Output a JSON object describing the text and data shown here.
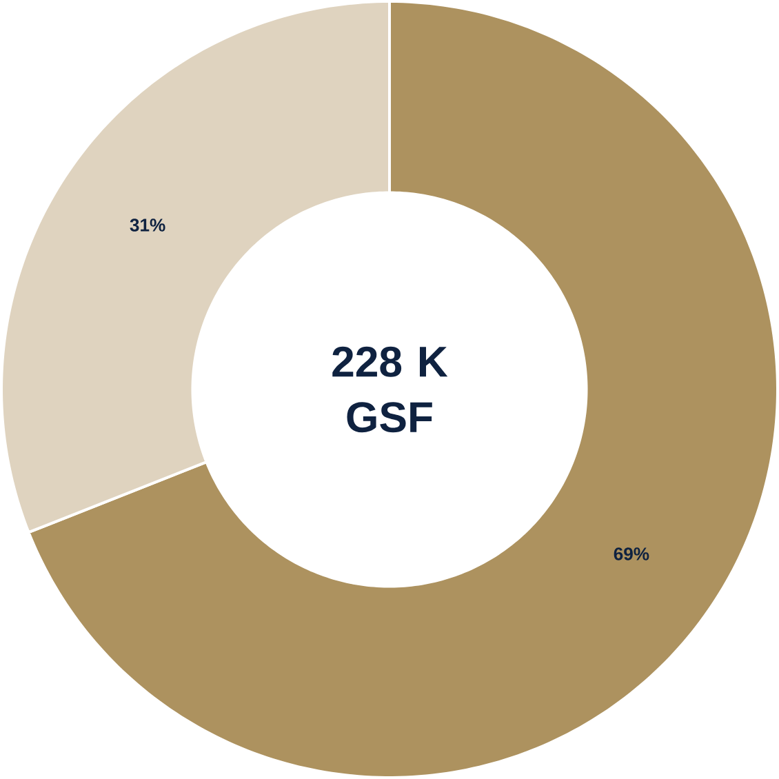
{
  "chart_data": {
    "type": "donut",
    "title": "228 K GSF",
    "categories": [
      null,
      null
    ],
    "values": [
      69,
      31
    ],
    "value_labels": [
      "69%",
      "31%"
    ],
    "colors": [
      "#ad925f",
      "#dfd3bf"
    ]
  }
}
